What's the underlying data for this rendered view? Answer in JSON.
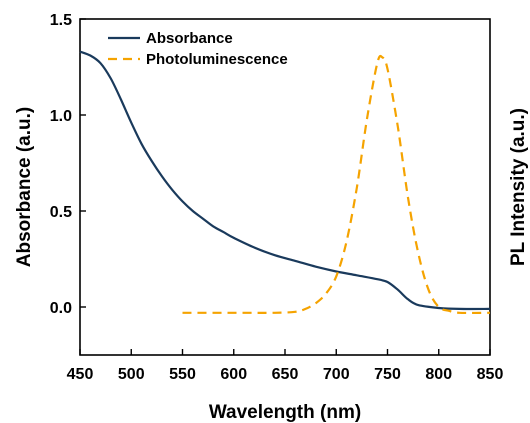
{
  "chart_data": {
    "type": "line",
    "xlabel": "Wavelength (nm)",
    "ylabel": "Absorbance (a.u.)",
    "y2label": "PL Intensity (a.u.)",
    "xlim": [
      450,
      850
    ],
    "ylim": [
      -0.25,
      1.5
    ],
    "xticks": [
      "450",
      "500",
      "550",
      "600",
      "650",
      "700",
      "750",
      "800",
      "850"
    ],
    "yticks": [
      "0.0",
      "0.5",
      "1.0",
      "1.5"
    ],
    "xtick_values": [
      450,
      500,
      550,
      600,
      650,
      700,
      750,
      800,
      850
    ],
    "ytick_values": [
      0.0,
      0.5,
      1.0,
      1.5
    ],
    "grid": false,
    "legend_position": "top-left",
    "series": [
      {
        "name": "Absorbance",
        "color": "#1a3a5c",
        "style": "solid",
        "axis": "left",
        "x": [
          450,
          460,
          470,
          480,
          490,
          500,
          510,
          520,
          530,
          540,
          550,
          560,
          570,
          580,
          590,
          600,
          620,
          640,
          660,
          680,
          700,
          720,
          740,
          750,
          760,
          770,
          780,
          800,
          820,
          850
        ],
        "y": [
          1.33,
          1.31,
          1.27,
          1.19,
          1.08,
          0.96,
          0.85,
          0.76,
          0.68,
          0.61,
          0.55,
          0.5,
          0.46,
          0.42,
          0.39,
          0.36,
          0.31,
          0.27,
          0.24,
          0.21,
          0.185,
          0.165,
          0.145,
          0.13,
          0.09,
          0.04,
          0.01,
          -0.005,
          -0.01,
          -0.01
        ]
      },
      {
        "name": "Photoluminescence",
        "color": "#f5a300",
        "style": "dashed",
        "axis": "left",
        "x": [
          550,
          600,
          640,
          660,
          670,
          680,
          690,
          700,
          710,
          720,
          730,
          740,
          745,
          750,
          760,
          770,
          780,
          790,
          800,
          810,
          820,
          850
        ],
        "y": [
          -0.03,
          -0.03,
          -0.03,
          -0.025,
          -0.01,
          0.02,
          0.07,
          0.16,
          0.34,
          0.62,
          0.98,
          1.27,
          1.3,
          1.24,
          0.94,
          0.57,
          0.28,
          0.09,
          0.0,
          -0.02,
          -0.03,
          -0.03
        ]
      }
    ]
  }
}
